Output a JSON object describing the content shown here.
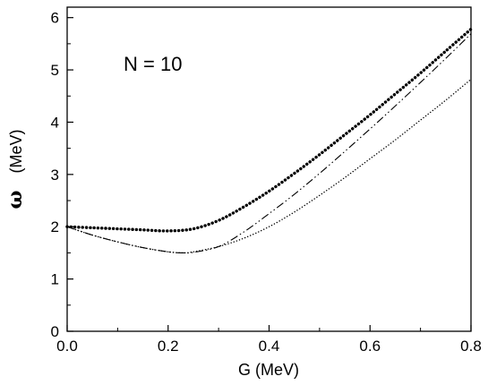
{
  "chart_data": {
    "type": "line",
    "title": "",
    "xlabel": "G (MeV)",
    "ylabel_symbol": "ω",
    "ylabel_unit": "(MeV)",
    "xlim": [
      0.0,
      0.8
    ],
    "ylim": [
      0,
      6.2
    ],
    "x_ticks": [
      "0.0",
      "0.2",
      "0.4",
      "0.6",
      "0.8"
    ],
    "y_ticks": [
      "0",
      "1",
      "2",
      "3",
      "4",
      "5",
      "6"
    ],
    "grid": false,
    "legend": "none",
    "annotation": "N = 10",
    "series": [
      {
        "style": "thick-dotted",
        "x": [
          0.0,
          0.05,
          0.1,
          0.15,
          0.2,
          0.25,
          0.3,
          0.35,
          0.4,
          0.45,
          0.5,
          0.55,
          0.6,
          0.65,
          0.7,
          0.75,
          0.8
        ],
        "y": [
          2.0,
          1.98,
          1.96,
          1.94,
          1.92,
          1.96,
          2.12,
          2.38,
          2.68,
          3.02,
          3.38,
          3.76,
          4.14,
          4.54,
          4.94,
          5.36,
          5.78
        ]
      },
      {
        "style": "dash-dot-dot",
        "x": [
          0.0,
          0.05,
          0.1,
          0.15,
          0.2,
          0.23,
          0.25,
          0.3,
          0.35,
          0.4,
          0.45,
          0.5,
          0.55,
          0.6,
          0.65,
          0.7,
          0.75,
          0.8
        ],
        "y": [
          2.0,
          1.84,
          1.71,
          1.6,
          1.52,
          1.5,
          1.51,
          1.62,
          1.9,
          2.25,
          2.62,
          3.02,
          3.44,
          3.87,
          4.31,
          4.76,
          5.22,
          5.69
        ]
      },
      {
        "style": "fine-dotted",
        "x": [
          0.0,
          0.05,
          0.1,
          0.15,
          0.2,
          0.23,
          0.25,
          0.3,
          0.35,
          0.4,
          0.45,
          0.5,
          0.55,
          0.6,
          0.65,
          0.7,
          0.75,
          0.8
        ],
        "y": [
          2.0,
          1.84,
          1.71,
          1.6,
          1.52,
          1.5,
          1.52,
          1.62,
          1.78,
          2.0,
          2.28,
          2.6,
          2.94,
          3.3,
          3.66,
          4.04,
          4.42,
          4.82
        ]
      }
    ]
  }
}
